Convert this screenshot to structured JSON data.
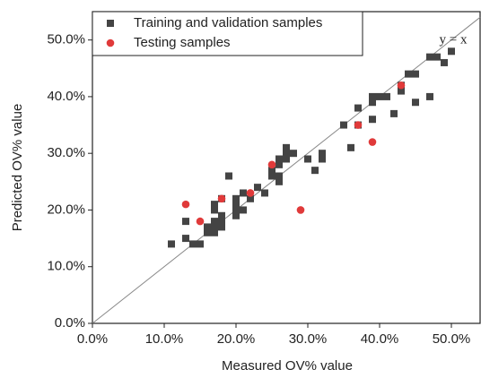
{
  "chart_data": {
    "type": "scatter",
    "x_label": "Measured OV% value",
    "y_label": "Predicted OV%  value",
    "annotation": "y = x",
    "xlim": [
      0,
      54
    ],
    "ylim": [
      0,
      55
    ],
    "xticks": [
      {
        "value": 0,
        "label": "0.0%"
      },
      {
        "value": 10,
        "label": "10.0%"
      },
      {
        "value": 20,
        "label": "20.0%"
      },
      {
        "value": 30,
        "label": "30.0%"
      },
      {
        "value": 40,
        "label": "40.0%"
      },
      {
        "value": 50,
        "label": "50.0%"
      }
    ],
    "yticks": [
      {
        "value": 0,
        "label": "0.0%"
      },
      {
        "value": 10,
        "label": "10.0%"
      },
      {
        "value": 20,
        "label": "20.0%"
      },
      {
        "value": 30,
        "label": "30.0%"
      },
      {
        "value": 40,
        "label": "40.0%"
      },
      {
        "value": 50,
        "label": "50.0%"
      }
    ],
    "legend": "top-left",
    "series": [
      {
        "name": "Training and validation samples",
        "color": "#444444",
        "marker": "square",
        "x": [
          11,
          13,
          14,
          15,
          13,
          16,
          16,
          17,
          17,
          17,
          18,
          18,
          18,
          17,
          17,
          18,
          19,
          20,
          20,
          20,
          20,
          21,
          21,
          22,
          23,
          24,
          25,
          25,
          26,
          26,
          26,
          26,
          27,
          27,
          27,
          28,
          30,
          31,
          32,
          32,
          35,
          36,
          37,
          37,
          39,
          39,
          39,
          40,
          41,
          42,
          43,
          43,
          44,
          45,
          45,
          47,
          47,
          48,
          49,
          50
        ],
        "values": [
          14,
          15,
          14,
          14,
          18,
          17,
          16,
          17,
          18,
          16,
          17,
          18,
          19,
          20,
          21,
          22,
          26,
          19,
          20,
          21,
          22,
          20,
          23,
          22,
          24,
          23,
          26,
          27,
          25,
          26,
          28,
          29,
          30,
          31,
          29,
          30,
          29,
          27,
          29,
          30,
          35,
          31,
          38,
          35,
          36,
          39,
          40,
          40,
          40,
          37,
          41,
          42,
          44,
          39,
          44,
          47,
          40,
          47,
          46,
          48
        ]
      },
      {
        "name": "Testing samples",
        "color": "#e03a3a",
        "marker": "circle",
        "x": [
          13,
          15,
          18,
          22,
          25,
          29,
          37,
          39,
          43
        ],
        "values": [
          21,
          18,
          22,
          23,
          28,
          20,
          35,
          32,
          42
        ]
      }
    ]
  }
}
